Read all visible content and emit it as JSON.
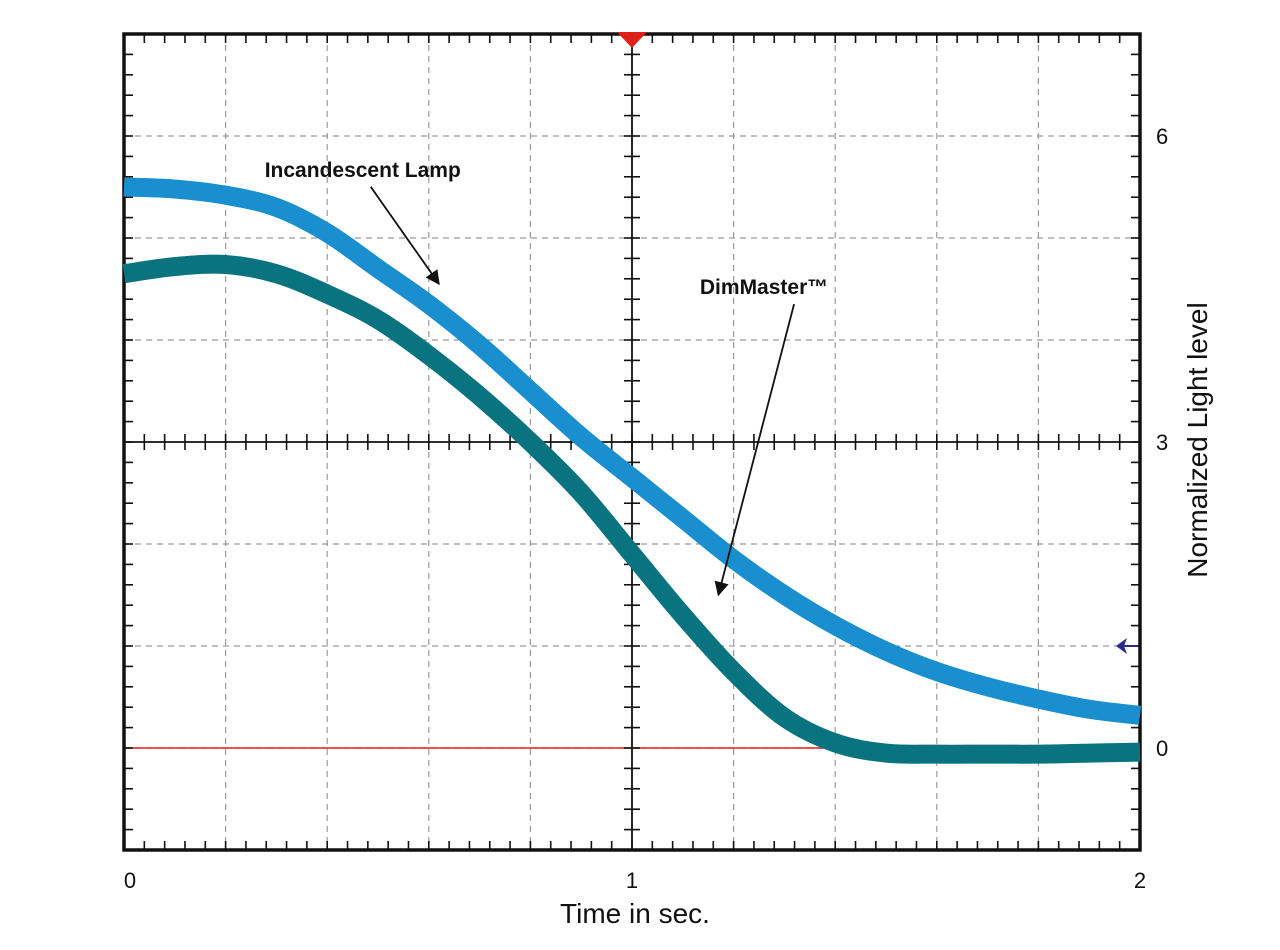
{
  "chart_data": {
    "type": "line",
    "xlabel": "Time in sec.",
    "ylabel": "Normalized  Light level",
    "xlim": [
      0,
      2
    ],
    "ylim": [
      -1,
      7
    ],
    "x_ticks": [
      "0",
      "1",
      "2"
    ],
    "y_ticks": [
      "0",
      "3",
      "6"
    ],
    "grid": true,
    "legend": "none",
    "colors": {
      "incandescent": "#1a8fd0",
      "dimmaster": "#0a7380",
      "zero_line": "#e0201a",
      "trigger_marker": "#e0201a",
      "level_marker": "#2a2a8a"
    },
    "series": [
      {
        "name": "Incandescent Lamp",
        "x": [
          0,
          0.1,
          0.2,
          0.3,
          0.4,
          0.5,
          0.6,
          0.7,
          0.8,
          0.9,
          1.0,
          1.1,
          1.2,
          1.3,
          1.4,
          1.5,
          1.6,
          1.7,
          1.8,
          1.9,
          2.0
        ],
        "y": [
          5.5,
          5.48,
          5.42,
          5.3,
          5.05,
          4.7,
          4.35,
          3.95,
          3.5,
          3.05,
          2.65,
          2.25,
          1.85,
          1.5,
          1.2,
          0.95,
          0.75,
          0.6,
          0.48,
          0.38,
          0.32
        ]
      },
      {
        "name": "DimMaster™",
        "x": [
          0,
          0.1,
          0.2,
          0.3,
          0.4,
          0.5,
          0.6,
          0.7,
          0.8,
          0.9,
          1.0,
          1.1,
          1.2,
          1.3,
          1.4,
          1.5,
          1.6,
          1.7,
          1.8,
          1.9,
          2.0
        ],
        "y": [
          4.65,
          4.72,
          4.74,
          4.65,
          4.45,
          4.2,
          3.85,
          3.45,
          3.0,
          2.5,
          1.9,
          1.3,
          0.75,
          0.3,
          0.05,
          -0.05,
          -0.06,
          -0.06,
          -0.06,
          -0.05,
          -0.04
        ]
      }
    ],
    "annotations": [
      {
        "text": "Incandescent Lamp",
        "x": 0.47,
        "y": 5.6,
        "target_x": 0.62,
        "target_y": 4.55
      },
      {
        "text": "DimMaster™",
        "x": 1.26,
        "y": 4.45,
        "target_x": 1.17,
        "target_y": 1.5
      }
    ]
  }
}
